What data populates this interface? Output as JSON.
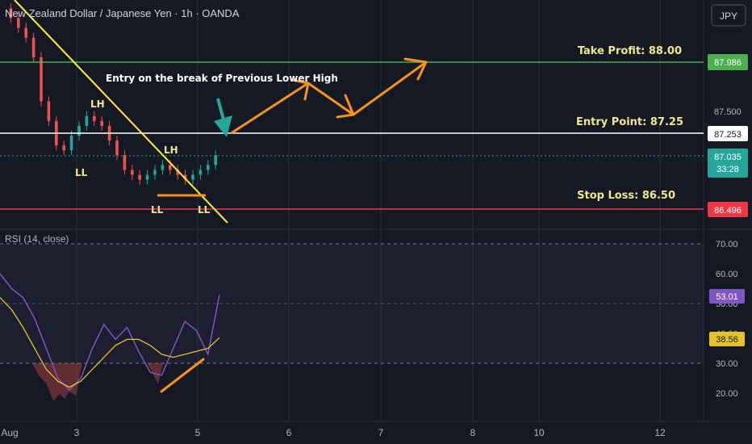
{
  "header": {
    "symbol_title": "New Zealand Dollar / Japanese Yen · 1h · OANDA",
    "currency_button": "JPY"
  },
  "annotations": {
    "take_profit": "Take Profit: 88.00",
    "entry_point": "Entry Point: 87.25",
    "stop_loss": "Stop Loss: 86.50",
    "entry_note": "Entry on the break of Previous Lower High",
    "lh1": "LH",
    "lh2": "LH",
    "ll1": "LL",
    "ll2": "LL",
    "ll3": "LL"
  },
  "price_badges": {
    "take_profit": "87.986",
    "entry": "87.253",
    "current": "87.035",
    "countdown": "33:28",
    "stop_loss": "86.496"
  },
  "price_axis": {
    "label_87500": "87.500"
  },
  "rsi_panel": {
    "title": "RSI (14, close)",
    "value_badge": "53.01",
    "ma_badge": "38.56",
    "ticks": [
      "70.00",
      "60.00",
      "50.00",
      "40.00",
      "30.00",
      "20.00"
    ]
  },
  "time_axis": [
    "Aug",
    "3",
    "5",
    "6",
    "7",
    "8",
    "10",
    "12"
  ],
  "colors": {
    "background": "#151924",
    "up_candle": "#26a69a",
    "down_candle": "#ef5350",
    "take_profit_line": "#4caf50",
    "stop_loss_line": "#f23645",
    "entry_line": "#ffffff",
    "trendline": "#ffeb3b",
    "arrow": "#f7931a",
    "annotation_yellow": "#f0e68c",
    "rsi_line": "#7e57c2",
    "rsi_ma": "#e6c229"
  },
  "chart_data": [
    {
      "type": "line",
      "title": "New Zealand Dollar / Japanese Yen · 1h · OANDA",
      "series": [
        {
          "name": "",
          "x": [
            0,
            2,
            4,
            6,
            8,
            10,
            12,
            14,
            16,
            18,
            20,
            22,
            24,
            26,
            28,
            30,
            32,
            34,
            36,
            38,
            40,
            42,
            44,
            46,
            48,
            50,
            52,
            54,
            56
          ],
          "values": [
            88.55,
            88.45,
            88.35,
            88.25,
            88.05,
            87.6,
            87.4,
            87.15,
            87.1,
            87.25,
            87.35,
            87.45,
            87.4,
            87.35,
            87.2,
            87.05,
            86.9,
            86.85,
            86.8,
            86.85,
            86.9,
            86.95,
            86.9,
            86.85,
            86.8,
            86.85,
            86.9,
            86.95,
            87.05
          ]
        }
      ],
      "levels": {
        "take_profit": 88.0,
        "entry": 87.25,
        "stop_loss": 86.5
      },
      "ylim": [
        86.4,
        88.6
      ]
    },
    {
      "type": "line",
      "title": "RSI (14, close)",
      "series": [
        {
          "name": "RSI",
          "values": [
            60,
            55,
            52,
            45,
            35,
            25,
            21,
            25,
            35,
            43,
            38,
            42,
            34,
            27,
            26,
            35,
            44,
            41,
            33,
            53
          ]
        },
        {
          "name": "MA",
          "values": [
            52,
            48,
            42,
            35,
            28,
            24,
            22,
            24,
            28,
            32,
            36,
            38,
            38,
            36,
            33,
            32,
            33,
            34,
            35,
            38.56
          ]
        }
      ],
      "ylim": [
        15,
        75
      ]
    }
  ]
}
